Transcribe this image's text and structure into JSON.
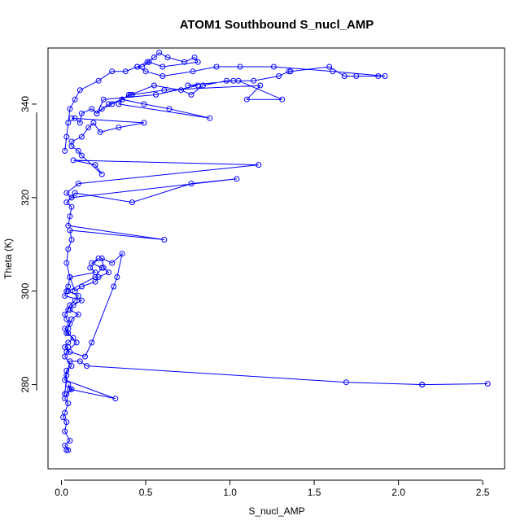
{
  "chart_data": {
    "type": "scatter",
    "title": "ATOM1 Southbound S_nucl_AMP",
    "xlabel": "S_nucl_AMP",
    "ylabel": "Theta (K)",
    "xlim": [
      -0.08,
      2.63
    ],
    "ylim": [
      262,
      352
    ],
    "xticks": [
      0.0,
      0.5,
      1.0,
      1.5,
      2.0,
      2.5
    ],
    "xtick_labels": [
      "0.0",
      "0.5",
      "1.0",
      "1.5",
      "2.0",
      "2.5"
    ],
    "yticks": [
      280,
      300,
      320,
      340
    ],
    "ytick_labels": [
      "280",
      "300",
      "320",
      "340"
    ],
    "grid": false,
    "legend": "none",
    "series_color": "#0000ff",
    "series": [
      {
        "x": [
          0.03,
          0.04,
          0.02,
          0.05,
          0.02,
          0.03,
          0.01,
          0.02,
          0.04,
          0.02,
          0.03,
          0.06,
          0.04,
          0.05,
          0.32,
          0.02,
          0.03,
          0.06,
          0.02,
          0.04,
          0.03,
          0.09,
          0.04,
          0.02,
          0.05,
          0.03,
          0.02,
          0.04,
          0.05,
          0.08,
          0.1,
          0.04,
          0.2,
          0.24,
          0.18,
          0.22,
          0.17,
          0.2,
          0.05,
          0.04,
          0.03,
          0.02,
          0.12,
          0.07,
          0.05,
          0.1,
          0.06,
          0.04,
          0.03,
          0.07,
          0.04,
          0.02,
          0.05,
          0.14,
          0.18,
          0.31,
          0.33,
          0.36,
          0.3,
          0.24,
          0.25,
          0.28,
          0.22,
          0.2,
          0.12,
          0.08,
          0.05,
          0.03,
          0.04,
          0.06,
          0.05,
          0.61,
          0.04,
          0.05,
          0.06,
          0.03,
          0.06,
          0.08,
          0.42,
          0.77,
          1.04,
          0.06,
          0.03,
          0.1,
          1.17,
          0.07,
          0.2,
          0.24,
          0.12,
          0.1,
          0.06,
          0.06,
          0.12,
          0.16,
          0.19,
          0.23,
          0.34,
          0.49,
          0.06,
          0.08,
          0.11,
          0.12,
          0.18,
          0.21,
          0.28,
          0.36,
          0.49,
          0.64,
          0.88,
          0.34,
          0.36,
          0.4,
          0.42,
          0.61,
          1.18,
          1.1,
          1.31,
          1.05,
          0.98,
          0.84,
          0.77,
          0.71,
          0.55,
          0.41,
          0.3,
          0.24,
          0.21,
          0.25,
          0.56,
          0.81,
          0.75,
          1.02,
          1.14,
          1.29,
          1.35,
          1.36,
          1.59,
          1.68,
          1.75,
          1.88,
          1.92,
          1.61,
          1.26,
          1.06,
          0.92,
          0.78,
          0.6,
          0.5,
          0.45,
          0.51,
          0.55,
          0.58,
          0.63,
          0.73,
          0.79,
          0.81,
          0.6,
          0.52,
          0.48,
          0.45,
          0.38,
          0.3,
          0.22,
          0.11,
          0.08,
          0.05,
          0.04,
          0.03,
          0.02
        ],
        "y": [
          266,
          266,
          267,
          268,
          270,
          272,
          273,
          274,
          276,
          277,
          278,
          279,
          280,
          279,
          277,
          281,
          283,
          284,
          286,
          288,
          287,
          289,
          291,
          292,
          293,
          294,
          295,
          296,
          297,
          298,
          299,
          300,
          303,
          305,
          306,
          307,
          305,
          304,
          303,
          301,
          300,
          299,
          298,
          297,
          296,
          295,
          294,
          292,
          291,
          290,
          289,
          288,
          287,
          286,
          289,
          301,
          303,
          308,
          306,
          307,
          305,
          304,
          303,
          302,
          301,
          300,
          303,
          306,
          309,
          311,
          313,
          311,
          314,
          316,
          318,
          319,
          320,
          321,
          319,
          323,
          324,
          320,
          321,
          323,
          327,
          328,
          327,
          325,
          329,
          330,
          331,
          332,
          333,
          335,
          336,
          334,
          335,
          336,
          337,
          337,
          336,
          338,
          339,
          338,
          340,
          341,
          340,
          339,
          337,
          340,
          341,
          342,
          342,
          343,
          344,
          341,
          341,
          345,
          345,
          344,
          342,
          343,
          344,
          342,
          340,
          339,
          338,
          341,
          342,
          344,
          344,
          345,
          345,
          346,
          347,
          347,
          348,
          346,
          346,
          346,
          346,
          347,
          348,
          348,
          348,
          347,
          346,
          347,
          348,
          349,
          350,
          351,
          350,
          349,
          350,
          349,
          348,
          349,
          348,
          348,
          347,
          347,
          345,
          343,
          341,
          339,
          336,
          333,
          330
        ]
      },
      {
        "x": [
          0.02,
          0.03,
          0.05,
          0.11,
          0.15,
          1.69,
          2.14,
          2.53,
          2.14
        ],
        "y": [
          278,
          282,
          285,
          285,
          284,
          280.5,
          280,
          280.2,
          280
        ]
      }
    ]
  }
}
